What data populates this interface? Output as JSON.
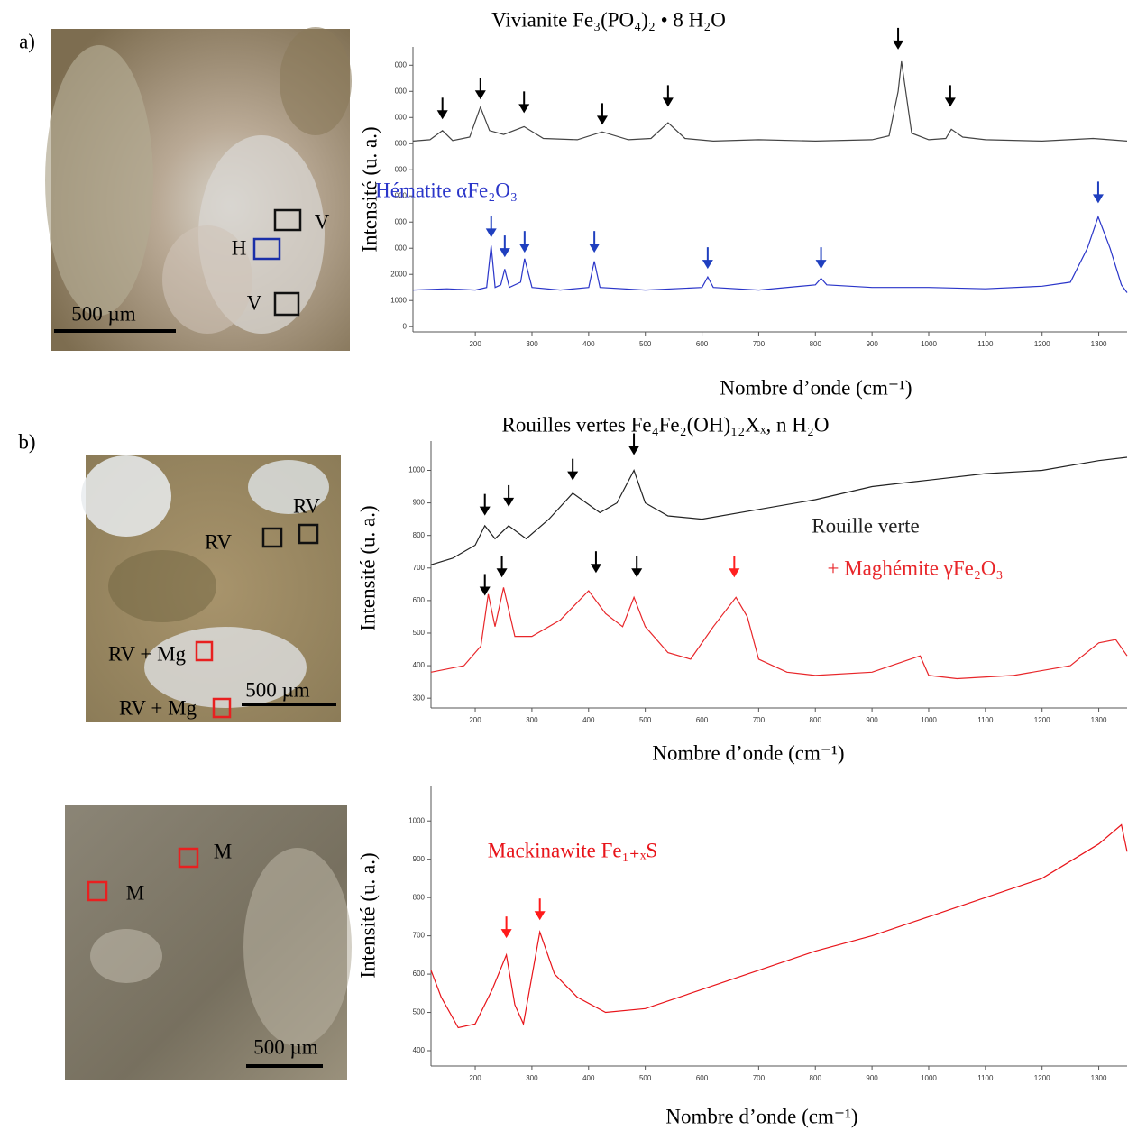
{
  "panels": [
    {
      "label": "a)",
      "image_labels": [
        "V",
        "H",
        "V"
      ],
      "scale_bar": "500 µm"
    },
    {
      "label": "b)",
      "image_labels": [
        "RV",
        "RV",
        "RV + Mg",
        "RV + Mg"
      ],
      "scale_bar": "500 µm"
    },
    {
      "image_labels": [
        "M",
        "M"
      ],
      "scale_bar": "500 µm"
    }
  ],
  "chart_data": [
    {
      "type": "line",
      "title": "Vivianite Fe₃(PO₄)₂ • 8 H₂O",
      "y_label": "Intensité (u. a.)",
      "x_label": "Nombre d’onde (cm⁻¹)",
      "xlim": [
        90,
        1350
      ],
      "xticks": [
        200,
        300,
        400,
        500,
        600,
        700,
        800,
        900,
        1000,
        1100,
        1200,
        1300
      ],
      "ylim": [
        -200,
        10700
      ],
      "yticks": [
        0,
        1000,
        2000,
        {
          "value": 3000,
          "label": "000"
        },
        {
          "value": 4000,
          "label": "000"
        },
        {
          "value": 5000,
          "label": "000"
        },
        {
          "value": 6000,
          "label": "000"
        },
        {
          "value": 7000,
          "label": "000"
        },
        {
          "value": 8000,
          "label": "000"
        },
        {
          "value": 9000,
          "label": "000"
        },
        {
          "value": 10000,
          "label": "000"
        }
      ],
      "series": [
        {
          "color": "#444444",
          "x": [
            90,
            120,
            142,
            160,
            190,
            209,
            225,
            250,
            286,
            320,
            380,
            424,
            470,
            510,
            540,
            570,
            620,
            700,
            800,
            900,
            930,
            946,
            952,
            970,
            1000,
            1030,
            1040,
            1060,
            1100,
            1200,
            1290,
            1350
          ],
          "values": [
            7100,
            7150,
            7500,
            7120,
            7250,
            8400,
            7500,
            7350,
            7650,
            7200,
            7150,
            7450,
            7150,
            7200,
            7800,
            7200,
            7100,
            7150,
            7100,
            7150,
            7300,
            9000,
            10150,
            7400,
            7150,
            7200,
            7550,
            7250,
            7150,
            7100,
            7200,
            7100
          ]
        },
        {
          "name": "Hématite αFe₂O₃",
          "color": "#2a35c9",
          "x": [
            90,
            150,
            200,
            220,
            228,
            235,
            245,
            252,
            260,
            280,
            287,
            300,
            350,
            400,
            410,
            420,
            500,
            600,
            610,
            620,
            700,
            800,
            810,
            820,
            900,
            1000,
            1100,
            1200,
            1250,
            1280,
            1299,
            1320,
            1340,
            1350
          ],
          "values": [
            1400,
            1450,
            1400,
            1500,
            3100,
            1500,
            1600,
            2200,
            1500,
            1700,
            2600,
            1500,
            1400,
            1500,
            2500,
            1500,
            1400,
            1500,
            1900,
            1500,
            1400,
            1600,
            1850,
            1600,
            1500,
            1500,
            1450,
            1550,
            1700,
            3000,
            4200,
            3000,
            1600,
            1300
          ]
        }
      ],
      "peaks": [
        {
          "x": 142,
          "y": 7930,
          "color": "#000000"
        },
        {
          "x": 209,
          "y": 8690,
          "color": "#000000"
        },
        {
          "x": 286,
          "y": 8170,
          "color": "#000000"
        },
        {
          "x": 424,
          "y": 7720,
          "color": "#000000"
        },
        {
          "x": 540,
          "y": 8410,
          "color": "#000000"
        },
        {
          "x": 946,
          "y": 10600,
          "color": "#000000"
        },
        {
          "x": 1038,
          "y": 8410,
          "color": "#000000"
        },
        {
          "x": 228,
          "y": 3410,
          "color": "#1f3fbf"
        },
        {
          "x": 252,
          "y": 2660,
          "color": "#1f3fbf"
        },
        {
          "x": 287,
          "y": 2830,
          "color": "#1f3fbf"
        },
        {
          "x": 410,
          "y": 2830,
          "color": "#1f3fbf"
        },
        {
          "x": 610,
          "y": 2210,
          "color": "#1f3fbf"
        },
        {
          "x": 810,
          "y": 2210,
          "color": "#1f3fbf"
        },
        {
          "x": 1299,
          "y": 4720,
          "color": "#1f3fbf"
        }
      ]
    },
    {
      "type": "line",
      "title": "Rouilles vertes Fe₄Fe₂(OH)₁₂Xₓ, n H₂O",
      "y_label": "Intensité (u. a.)",
      "x_label": "Nombre d’onde (cm⁻¹)",
      "xlim": [
        122,
        1350
      ],
      "xticks": [
        200,
        300,
        400,
        500,
        600,
        700,
        800,
        900,
        1000,
        1100,
        1200,
        1300
      ],
      "ylim": [
        270,
        1090
      ],
      "yticks": [
        300,
        400,
        500,
        600,
        700,
        800,
        900,
        1000
      ],
      "series": [
        {
          "name": "Rouille verte",
          "color": "#222222",
          "x": [
            122,
            160,
            200,
            217,
            235,
            259,
            290,
            330,
            372,
            420,
            450,
            480,
            500,
            540,
            600,
            700,
            800,
            900,
            1000,
            1100,
            1200,
            1300,
            1350
          ],
          "values": [
            710,
            730,
            770,
            830,
            790,
            830,
            790,
            850,
            930,
            870,
            900,
            1000,
            900,
            860,
            850,
            880,
            910,
            950,
            970,
            990,
            1000,
            1030,
            1040
          ]
        },
        {
          "name": "+ Maghémite γFe₂O₃",
          "color": "#e8262a",
          "x": [
            122,
            180,
            210,
            223,
            235,
            250,
            270,
            300,
            350,
            400,
            430,
            460,
            480,
            500,
            540,
            580,
            620,
            660,
            680,
            700,
            750,
            800,
            900,
            985,
            1000,
            1050,
            1150,
            1250,
            1300,
            1330,
            1350
          ],
          "values": [
            380,
            400,
            460,
            620,
            520,
            640,
            490,
            490,
            540,
            630,
            560,
            520,
            610,
            520,
            440,
            420,
            520,
            610,
            550,
            420,
            380,
            370,
            380,
            430,
            370,
            360,
            370,
            400,
            470,
            480,
            430
          ]
        }
      ],
      "peaks": [
        {
          "x": 217,
          "y": 861,
          "color": "#000000"
        },
        {
          "x": 259,
          "y": 888,
          "color": "#000000"
        },
        {
          "x": 372,
          "y": 969,
          "color": "#000000"
        },
        {
          "x": 480,
          "y": 1047,
          "color": "#000000"
        },
        {
          "x": 217,
          "y": 615,
          "color": "#000000"
        },
        {
          "x": 247,
          "y": 671,
          "color": "#000000"
        },
        {
          "x": 413,
          "y": 685,
          "color": "#000000"
        },
        {
          "x": 485,
          "y": 671,
          "color": "#000000"
        },
        {
          "x": 657,
          "y": 671,
          "color": "#ff2020"
        }
      ]
    },
    {
      "type": "line",
      "y_label": "Intensité (u. a.)",
      "x_label": "Nombre d’onde (cm⁻¹)",
      "xlim": [
        122,
        1350
      ],
      "xticks": [
        200,
        300,
        400,
        500,
        600,
        700,
        800,
        900,
        1000,
        1100,
        1200,
        1300
      ],
      "ylim": [
        360,
        1090
      ],
      "yticks": [
        400,
        500,
        600,
        700,
        800,
        900,
        1000
      ],
      "series": [
        {
          "name": "Mackinawite Fe₁₊ₓS",
          "color": "#e8141a",
          "x": [
            122,
            140,
            170,
            200,
            230,
            255,
            270,
            285,
            314,
            340,
            380,
            430,
            500,
            600,
            700,
            800,
            900,
            1000,
            1100,
            1200,
            1300,
            1340,
            1350
          ],
          "values": [
            610,
            540,
            460,
            470,
            560,
            650,
            520,
            470,
            710,
            600,
            540,
            500,
            510,
            560,
            610,
            660,
            700,
            750,
            800,
            850,
            940,
            990,
            920
          ]
        }
      ],
      "peaks": [
        {
          "x": 255,
          "y": 694,
          "color": "#ff1a1a"
        },
        {
          "x": 314,
          "y": 741,
          "color": "#ff1a1a"
        }
      ]
    }
  ]
}
